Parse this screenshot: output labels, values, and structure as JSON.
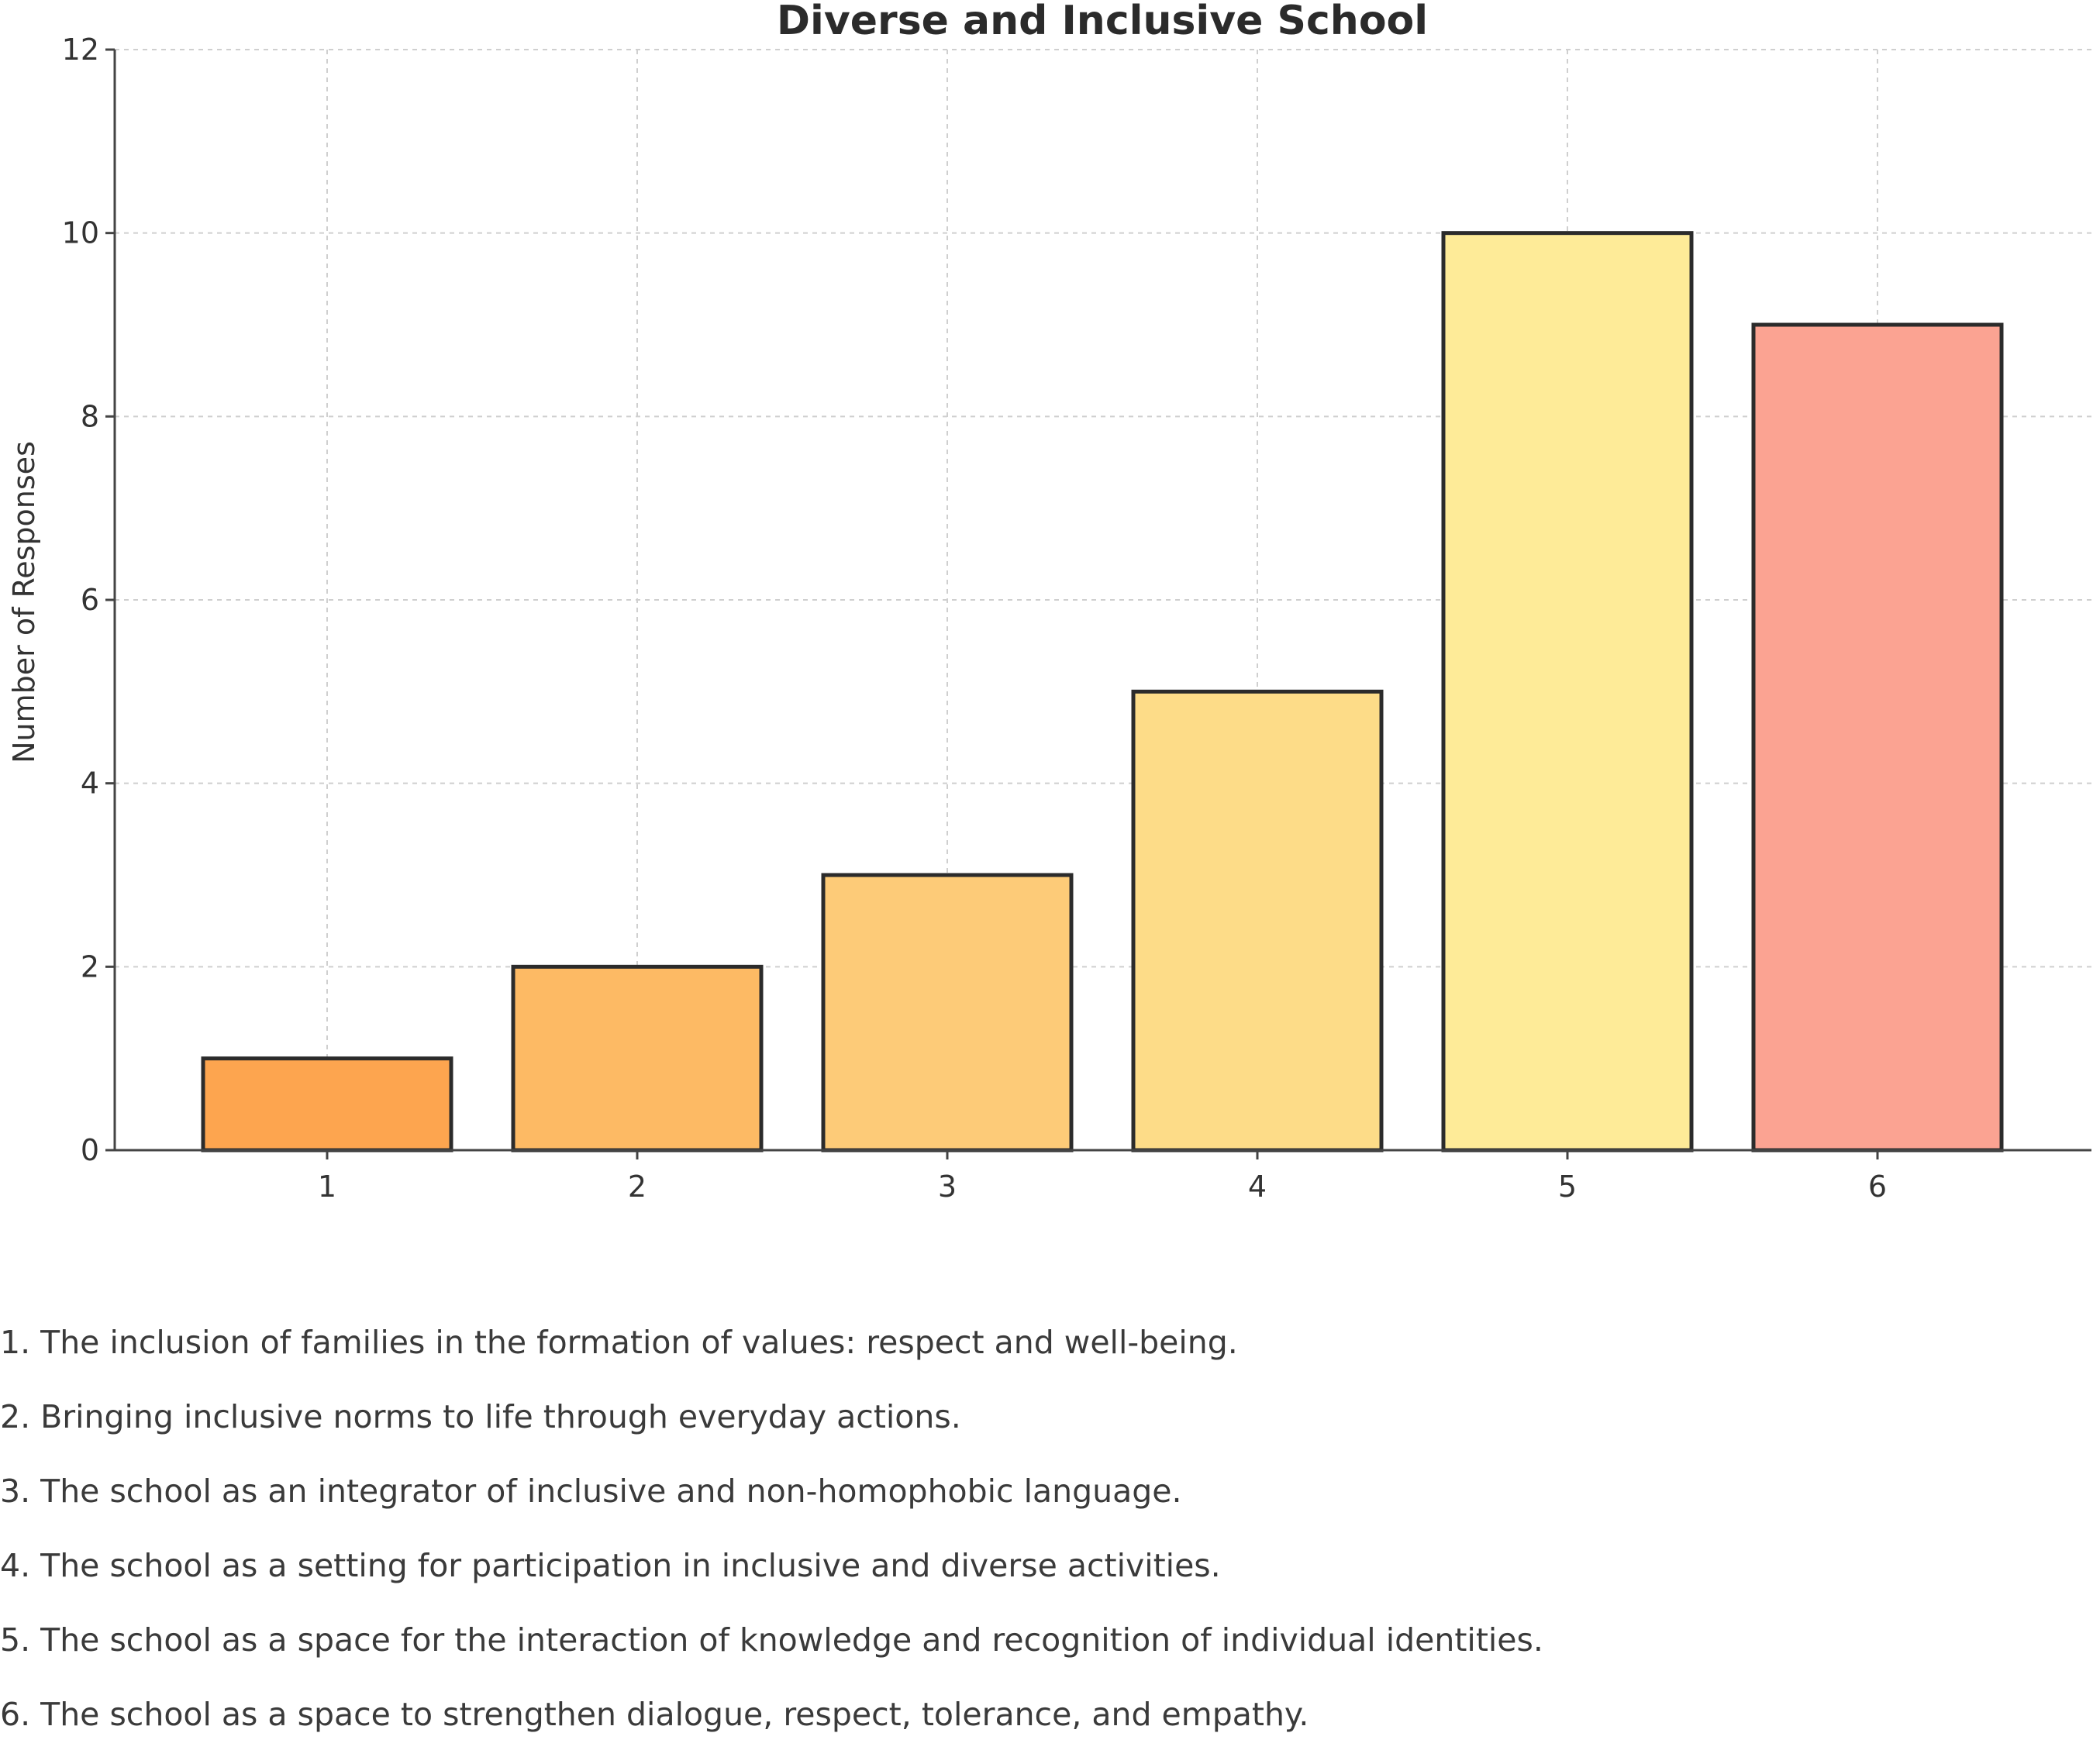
{
  "chart_data": {
    "type": "bar",
    "title": "Diverse and Inclusive School",
    "xlabel": "",
    "ylabel": "Number of Responses",
    "categories": [
      "1",
      "2",
      "3",
      "4",
      "5",
      "6"
    ],
    "values": [
      1,
      2,
      3,
      5,
      10,
      9
    ],
    "colors": [
      "#FDA54F",
      "#FDBA64",
      "#FDCB78",
      "#FDDC88",
      "#FEEB98",
      "#FBA392"
    ],
    "ylim": [
      0,
      12
    ],
    "yticks": [
      "0",
      "2",
      "4",
      "6",
      "8",
      "10",
      "12"
    ],
    "grid": true,
    "bar_edge_color": "#2b2b2b"
  },
  "legend": [
    "1. The inclusion of families in the formation of values: respect and well-being.",
    "2. Bringing inclusive norms to life through everyday actions.",
    "3. The school as an integrator of inclusive and non-homophobic language.",
    "4. The school as a setting for participation in inclusive and diverse activities.",
    "5. The school as a space for the interaction of knowledge and recognition of individual identities.",
    "6. The school as a space to strengthen dialogue, respect, tolerance, and empathy."
  ]
}
